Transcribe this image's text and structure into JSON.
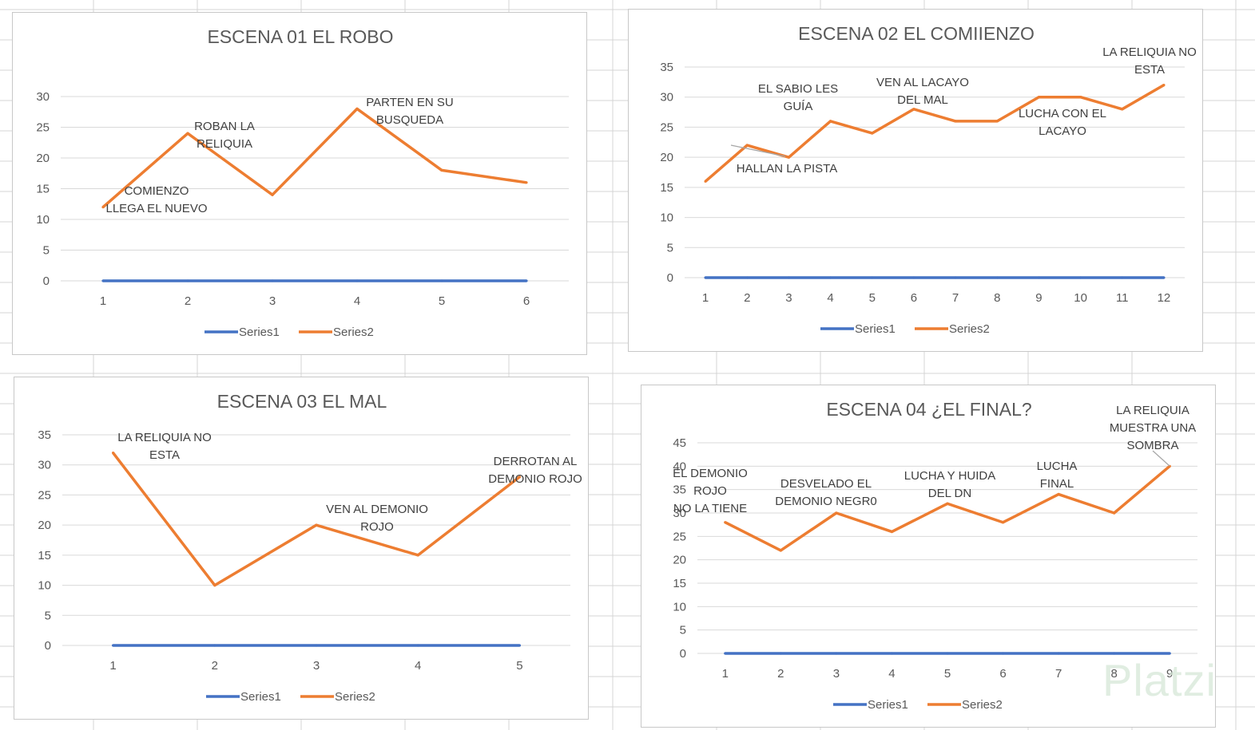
{
  "colors": {
    "series1": "#4472c4",
    "series2": "#ed7d31",
    "gridline": "#d9d9d9",
    "text": "#595959",
    "sheet_grid": "#d4d4d4"
  },
  "watermark": "Platzi",
  "chart_data": [
    {
      "type": "line",
      "title": "ESCENA 01 EL ROBO",
      "categories": [
        "1",
        "2",
        "3",
        "4",
        "5",
        "6"
      ],
      "ylim": [
        0,
        30
      ],
      "ystep": 5,
      "series": [
        {
          "name": "Series1",
          "values": [
            0,
            0,
            0,
            0,
            0,
            0
          ]
        },
        {
          "name": "Series2",
          "values": [
            12,
            24,
            14,
            28,
            18,
            16
          ]
        }
      ],
      "annotations": [
        {
          "lines": [
            "COMIENZO",
            "LLEGA EL NUEVO"
          ],
          "point": 1
        },
        {
          "lines": [
            "ROBAN LA",
            "RELIQUIA"
          ],
          "point": 2
        },
        {
          "lines": [
            "PARTEN EN SU",
            "BUSQUEDA"
          ],
          "point": 4
        }
      ],
      "legend": [
        "Series1",
        "Series2"
      ]
    },
    {
      "type": "line",
      "title": "ESCENA 02 EL COMIIENZO",
      "categories": [
        "1",
        "2",
        "3",
        "4",
        "5",
        "6",
        "7",
        "8",
        "9",
        "10",
        "11",
        "12"
      ],
      "ylim": [
        0,
        35
      ],
      "ystep": 5,
      "series": [
        {
          "name": "Series1",
          "values": [
            0,
            0,
            0,
            0,
            0,
            0,
            0,
            0,
            0,
            0,
            0,
            0
          ]
        },
        {
          "name": "Series2",
          "values": [
            16,
            22,
            20,
            26,
            24,
            28,
            26,
            26,
            30,
            30,
            28,
            32
          ]
        }
      ],
      "annotations": [
        {
          "lines": [
            "EL SABIO LES",
            "GUÍA"
          ],
          "point": 3
        },
        {
          "lines": [
            "HALLAN LA PISTA"
          ],
          "point": 2
        },
        {
          "lines": [
            "VEN AL LACAYO",
            "DEL MAL"
          ],
          "point": 6
        },
        {
          "lines": [
            "LUCHA CON EL",
            "LACAYO"
          ],
          "point": 10
        },
        {
          "lines": [
            "LA RELIQUIA NO",
            "ESTA"
          ],
          "point": 12
        }
      ],
      "legend": [
        "Series1",
        "Series2"
      ]
    },
    {
      "type": "line",
      "title": "ESCENA 03 EL MAL",
      "categories": [
        "1",
        "2",
        "3",
        "4",
        "5"
      ],
      "ylim": [
        0,
        35
      ],
      "ystep": 5,
      "series": [
        {
          "name": "Series1",
          "values": [
            0,
            0,
            0,
            0,
            0
          ]
        },
        {
          "name": "Series2",
          "values": [
            32,
            10,
            20,
            15,
            28
          ]
        }
      ],
      "annotations": [
        {
          "lines": [
            "LA RELIQUIA NO",
            "ESTA"
          ],
          "point": 1
        },
        {
          "lines": [
            "VEN AL DEMONIO",
            "ROJO"
          ],
          "point": 3
        },
        {
          "lines": [
            "DERROTAN AL",
            "DEMONIO ROJO"
          ],
          "point": 5
        }
      ],
      "legend": [
        "Series1",
        "Series2"
      ]
    },
    {
      "type": "line",
      "title": "ESCENA 04 ¿EL FINAL?",
      "categories": [
        "1",
        "2",
        "3",
        "4",
        "5",
        "6",
        "7",
        "8",
        "9"
      ],
      "ylim": [
        0,
        45
      ],
      "ystep": 5,
      "series": [
        {
          "name": "Series1",
          "values": [
            0,
            0,
            0,
            0,
            0,
            0,
            0,
            0,
            0
          ]
        },
        {
          "name": "Series2",
          "values": [
            28,
            22,
            30,
            26,
            32,
            28,
            34,
            30,
            40
          ]
        }
      ],
      "annotations": [
        {
          "lines": [
            "EL DEMONIO",
            "ROJO",
            "NO LA TIENE"
          ],
          "point": 1
        },
        {
          "lines": [
            "DESVELADO EL",
            "DEMONIO NEGR0"
          ],
          "point": 3
        },
        {
          "lines": [
            "LUCHA Y HUIDA",
            "DEL DN"
          ],
          "point": 5
        },
        {
          "lines": [
            "LUCHA",
            "FINAL"
          ],
          "point": 7
        },
        {
          "lines": [
            "LA RELIQUIA",
            "MUESTRA UNA",
            "SOMBRA"
          ],
          "point": 9
        }
      ],
      "legend": [
        "Series1",
        "Series2"
      ]
    }
  ]
}
